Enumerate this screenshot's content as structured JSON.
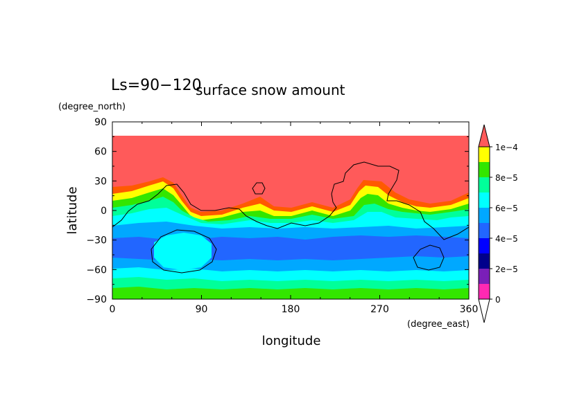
{
  "panel_label": "Ls=90−120",
  "chart_data": {
    "type": "heatmap",
    "title": "surface snow amount",
    "xlabel": "longitude",
    "ylabel": "latitude",
    "x_units": "(degree_east)",
    "y_units": "(degree_north)",
    "xlim": [
      0,
      360
    ],
    "ylim": [
      -90,
      90
    ],
    "x_ticks": [
      "0",
      "90",
      "180",
      "270",
      "360"
    ],
    "y_ticks": [
      "90",
      "60",
      "30",
      "0",
      "−30",
      "−60",
      "−90"
    ],
    "colorbar": {
      "levels": [
        0,
        1e-05,
        2e-05,
        3e-05,
        4e-05,
        5e-05,
        6e-05,
        7e-05,
        8e-05,
        9e-05,
        0.0001
      ],
      "tick_labels": [
        "0",
        "2e−5",
        "4e−5",
        "6e−5",
        "8e−5",
        "1e−4"
      ],
      "colors": [
        "#ff29b3",
        "#7a1fb8",
        "#00008b",
        "#0000ff",
        "#2266ff",
        "#00a8ff",
        "#00ffff",
        "#00ff9a",
        "#33e600",
        "#ffff00",
        "#ff5a00",
        "#ff5a5a"
      ],
      "extend": "both"
    },
    "no_data_above_lat": 77.5
  }
}
